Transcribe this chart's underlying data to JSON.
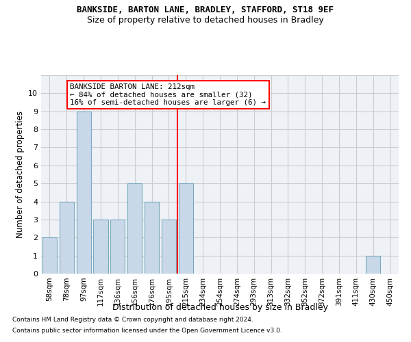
{
  "title1": "BANKSIDE, BARTON LANE, BRADLEY, STAFFORD, ST18 9EF",
  "title2": "Size of property relative to detached houses in Bradley",
  "xlabel": "Distribution of detached houses by size in Bradley",
  "ylabel": "Number of detached properties",
  "categories": [
    "58sqm",
    "78sqm",
    "97sqm",
    "117sqm",
    "136sqm",
    "156sqm",
    "176sqm",
    "195sqm",
    "215sqm",
    "234sqm",
    "254sqm",
    "274sqm",
    "293sqm",
    "313sqm",
    "332sqm",
    "352sqm",
    "372sqm",
    "391sqm",
    "411sqm",
    "430sqm",
    "450sqm"
  ],
  "values": [
    2,
    4,
    9,
    3,
    3,
    5,
    4,
    3,
    5,
    0,
    0,
    0,
    0,
    0,
    0,
    0,
    0,
    0,
    0,
    1,
    0
  ],
  "bar_color": "#c8d8e8",
  "bar_edge_color": "#7aaabf",
  "highlight_line_color": "red",
  "annotation_text": "BANKSIDE BARTON LANE: 212sqm\n← 84% of detached houses are smaller (32)\n16% of semi-detached houses are larger (6) →",
  "annotation_box_color": "white",
  "annotation_box_edge_color": "red",
  "ylim_max": 11,
  "yticks": [
    0,
    1,
    2,
    3,
    4,
    5,
    6,
    7,
    8,
    9,
    10,
    11
  ],
  "footer1": "Contains HM Land Registry data © Crown copyright and database right 2024.",
  "footer2": "Contains public sector information licensed under the Open Government Licence v3.0.",
  "grid_color": "#cccccc",
  "background_color": "#eef2f7"
}
